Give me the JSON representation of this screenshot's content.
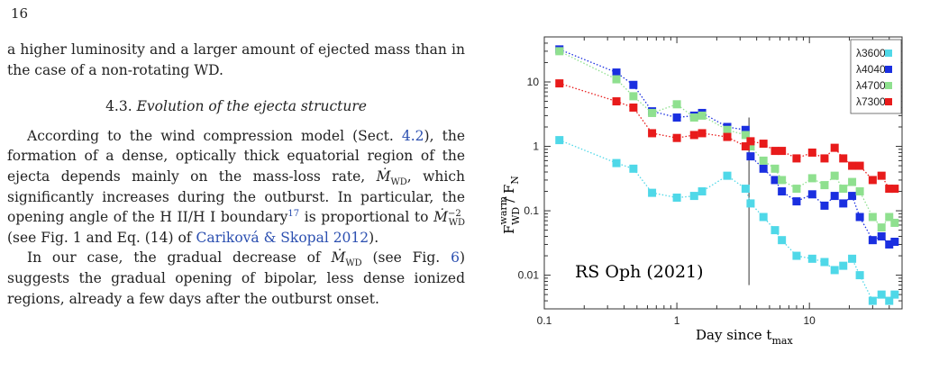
{
  "page": {
    "number": "16"
  },
  "text": {
    "para1": "a higher luminosity and a larger amount of ejected mass than in the case of a non-rotating WD.",
    "section_number": "4.3.",
    "section_title": "Evolution of the ejecta structure",
    "para2_a": "According to the wind compression model (Sect. ",
    "para2_ref_sect": "4.2",
    "para2_b": "), the formation of a dense, optically thick equatorial region of the ejecta depends mainly on the mass-loss rate, ",
    "mdot_symbol": "Ṁ",
    "mdot_sub": "WD",
    "para2_c": ", which significantly increases during the outburst. In particular, the opening angle of the H ",
    "hii": "II",
    "slash_h": "/H ",
    "hi": "I",
    "para2_d": " boundary",
    "footnote_mark": "17",
    "para2_e": " is proportional to ",
    "mdot_exp": "−2",
    "para2_f": " (see Fig. 1 and Eq. (14) of ",
    "para2_ref_cit": "Cariková & Skopal 2012",
    "para2_g": ").",
    "para3_a": "In our case, the gradual decrease of ",
    "para3_b": " (see Fig. ",
    "para3_ref_fig": "6",
    "para3_c": ") suggests the gradual opening of bipolar, less dense ionized regions, already a few days after the outburst onset."
  },
  "chart_data": {
    "type": "scatter",
    "annotation": "RS Oph (2021)",
    "xlabel": "Day since t",
    "xlabel_sub": "max",
    "ylabel": "F",
    "ylabel_sub": "WD",
    "ylabel_sup": "warm",
    "ylabel_tail": " / F",
    "ylabel_tail_sub": "N",
    "x_scale": "log",
    "y_scale": "log",
    "xlim": [
      0.1,
      50
    ],
    "ylim": [
      0.003,
      50
    ],
    "x_ticks": [
      {
        "value": 0.1,
        "label": "0.1"
      },
      {
        "value": 1,
        "label": "1"
      },
      {
        "value": 10,
        "label": "10"
      }
    ],
    "y_ticks": [
      {
        "value": 0.01,
        "label": "0.01"
      },
      {
        "value": 0.1,
        "label": "0.1"
      },
      {
        "value": 1,
        "label": "1"
      },
      {
        "value": 10,
        "label": "10"
      }
    ],
    "vertical_line_x": 3.5,
    "legend_position": "top-right",
    "series": [
      {
        "name": "λ3600",
        "color": "#4fd8e8",
        "x": [
          0.13,
          0.35,
          0.47,
          0.65,
          1.0,
          1.35,
          1.55,
          2.4,
          3.3,
          3.6,
          4.5,
          5.5,
          6.2,
          8.0,
          10.5,
          13,
          15.5,
          18,
          21,
          24,
          30,
          35,
          40,
          44
        ],
        "y": [
          1.25,
          0.55,
          0.45,
          0.19,
          0.16,
          0.17,
          0.2,
          0.35,
          0.22,
          0.13,
          0.08,
          0.05,
          0.035,
          0.02,
          0.018,
          0.016,
          0.012,
          0.014,
          0.018,
          0.01,
          0.004,
          0.005,
          0.004,
          0.005
        ]
      },
      {
        "name": "λ4040",
        "color": "#1a2fe0",
        "x": [
          0.13,
          0.35,
          0.47,
          0.65,
          1.0,
          1.35,
          1.55,
          2.4,
          3.3,
          3.6,
          4.5,
          5.5,
          6.2,
          8.0,
          10.5,
          13,
          15.5,
          18,
          21,
          24,
          30,
          35,
          40,
          44
        ],
        "y": [
          32,
          14,
          9,
          3.5,
          2.8,
          3.0,
          3.3,
          2.0,
          1.8,
          0.7,
          0.45,
          0.3,
          0.2,
          0.14,
          0.18,
          0.12,
          0.17,
          0.13,
          0.17,
          0.08,
          0.035,
          0.04,
          0.03,
          0.033
        ]
      },
      {
        "name": "λ4700",
        "color": "#8fe08f",
        "x": [
          0.13,
          0.35,
          0.47,
          0.65,
          1.0,
          1.35,
          1.55,
          2.4,
          3.3,
          3.6,
          4.5,
          5.5,
          6.2,
          8.0,
          10.5,
          13,
          15.5,
          18,
          21,
          24,
          30,
          35,
          40,
          44
        ],
        "y": [
          30,
          11,
          6,
          3.3,
          4.5,
          2.8,
          3.0,
          1.8,
          1.5,
          1.0,
          0.6,
          0.45,
          0.3,
          0.22,
          0.32,
          0.25,
          0.35,
          0.22,
          0.28,
          0.2,
          0.08,
          0.055,
          0.08,
          0.065
        ]
      },
      {
        "name": "λ7300",
        "color": "#e81b1b",
        "x": [
          0.13,
          0.35,
          0.47,
          0.65,
          1.0,
          1.35,
          1.55,
          2.4,
          3.3,
          3.6,
          4.5,
          5.5,
          6.2,
          8.0,
          10.5,
          13,
          15.5,
          18,
          21,
          24,
          30,
          35,
          40,
          44
        ],
        "y": [
          9.5,
          5.0,
          4.0,
          1.6,
          1.35,
          1.5,
          1.6,
          1.4,
          1.0,
          1.2,
          1.1,
          0.85,
          0.85,
          0.65,
          0.8,
          0.65,
          0.95,
          0.65,
          0.5,
          0.5,
          0.3,
          0.35,
          0.22,
          0.22
        ]
      }
    ]
  }
}
